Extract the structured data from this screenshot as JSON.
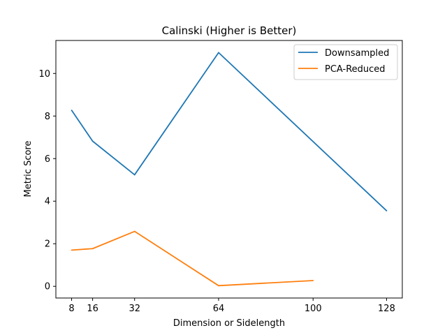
{
  "chart_data": {
    "type": "line",
    "title": "Calinski (Higher is Better)",
    "xlabel": "Dimension or Sidelength",
    "ylabel": "Metric Score",
    "xticks": [
      8,
      16,
      32,
      64,
      100,
      128
    ],
    "yticks": [
      0,
      2,
      4,
      6,
      8,
      10
    ],
    "xlim": [
      2,
      134
    ],
    "ylim": [
      -0.55,
      11.55
    ],
    "grid": false,
    "legend_position": "top-right",
    "series": [
      {
        "name": "Downsampled",
        "color": "#1f77b4",
        "x": [
          8,
          16,
          32,
          64,
          128
        ],
        "y": [
          8.27,
          6.82,
          5.24,
          10.98,
          3.55
        ]
      },
      {
        "name": "PCA-Reduced",
        "color": "#ff7f0e",
        "x": [
          8,
          16,
          32,
          64,
          100
        ],
        "y": [
          1.7,
          1.77,
          2.58,
          0.03,
          0.27
        ]
      }
    ]
  }
}
